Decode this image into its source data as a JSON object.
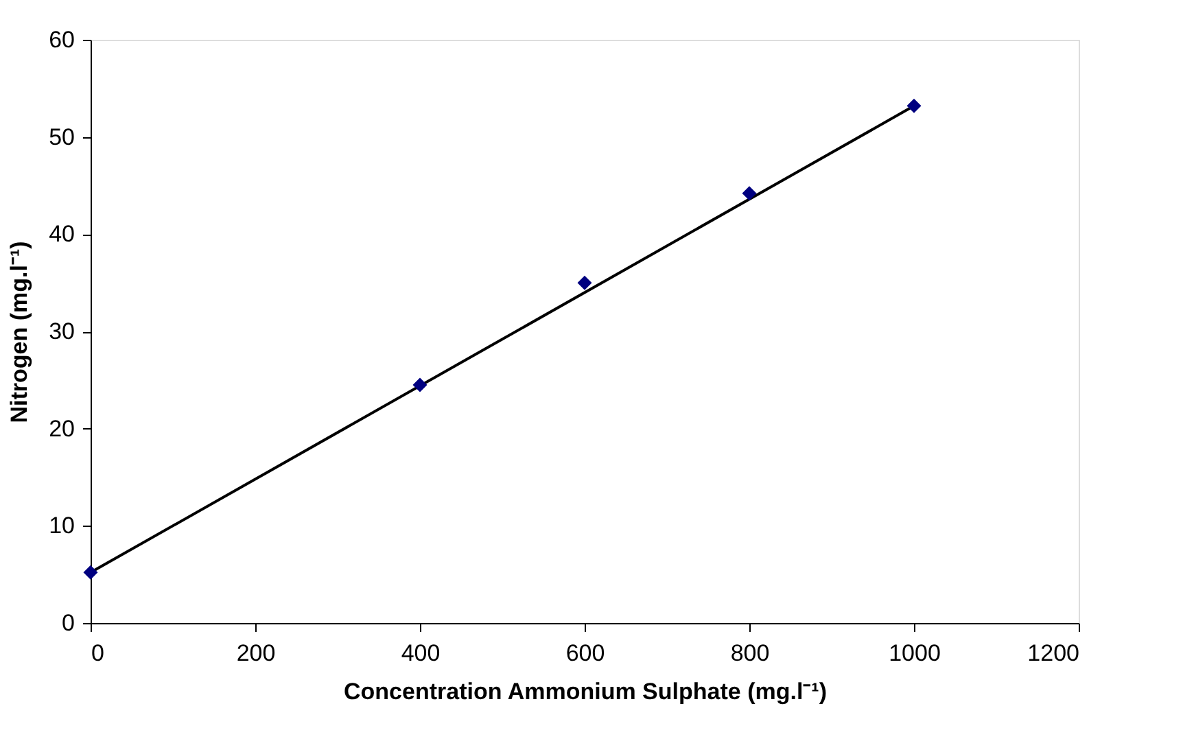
{
  "chart_data": {
    "type": "scatter",
    "xlabel": "Concentration  Ammonium Sulphate (mg.l⁻¹)",
    "ylabel": "Nitrogen (mg.l⁻¹)",
    "series": [
      {
        "type": "line",
        "color": "#000000",
        "x": [
          0,
          1000
        ],
        "values": [
          5.2,
          53.2
        ],
        "marker": "none",
        "line_style": "solid"
      },
      {
        "color": "#000080",
        "x": [
          0,
          400,
          600,
          800,
          1000
        ],
        "values": [
          5.2,
          24.5,
          35,
          44.2,
          53.2
        ],
        "marker": "diamond"
      }
    ],
    "xlim": [
      0,
      1200
    ],
    "xticks": [
      0,
      200,
      400,
      600,
      800,
      1000,
      1200
    ],
    "ylim": [
      0,
      60
    ],
    "yticks": [
      0,
      10,
      20,
      30,
      40,
      50,
      60
    ],
    "grid": false
  }
}
